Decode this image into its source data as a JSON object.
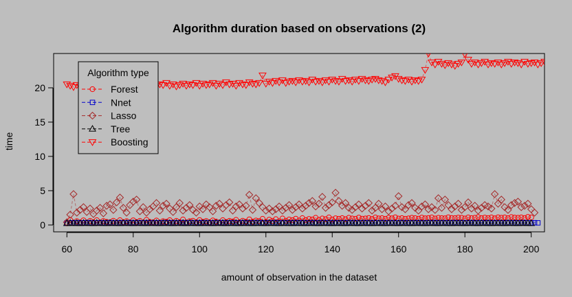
{
  "chart_data": {
    "type": "scatter",
    "title": "Algorithm duration based on observations (2)",
    "xlabel": "amount of observation in the dataset",
    "ylabel": "time",
    "xlim": [
      56,
      204
    ],
    "ylim": [
      -1,
      25
    ],
    "x_ticks": [
      60,
      80,
      100,
      120,
      140,
      160,
      180,
      200
    ],
    "y_ticks": [
      0,
      5,
      10,
      15,
      20
    ],
    "grid": false,
    "legend_title": "Algorithm type",
    "legend_position": "top-left",
    "x_start": 60,
    "x_step": 1,
    "series": [
      {
        "name": "Forest",
        "color": "#ff0000",
        "marker": "circle",
        "values": [
          0.25,
          0.72,
          0.28,
          0.55,
          0.35,
          0.68,
          0.3,
          0.6,
          0.4,
          0.7,
          0.32,
          0.58,
          0.45,
          0.38,
          0.62,
          0.3,
          0.7,
          0.4,
          0.55,
          0.35,
          0.68,
          0.42,
          0.6,
          0.3,
          0.75,
          0.45,
          0.38,
          0.65,
          0.33,
          0.55,
          0.48,
          0.7,
          0.36,
          0.6,
          0.42,
          0.8,
          0.35,
          0.55,
          0.62,
          0.4,
          0.72,
          0.45,
          0.58,
          0.38,
          0.66,
          0.5,
          0.35,
          0.7,
          0.44,
          0.6,
          0.52,
          0.75,
          0.4,
          0.62,
          0.48,
          0.82,
          0.5,
          0.65,
          0.58,
          0.9,
          0.45,
          0.78,
          0.6,
          0.85,
          0.55,
          0.95,
          0.62,
          0.8,
          0.7,
          0.92,
          0.65,
          1.0,
          0.72,
          0.88,
          0.8,
          1.05,
          0.75,
          0.95,
          0.85,
          1.1,
          0.8,
          0.98,
          0.9,
          1.0,
          0.85,
          1.05,
          0.95,
          0.9,
          1.08,
          0.92,
          0.95,
          1.02,
          0.88,
          1.1,
          0.96,
          1.0,
          0.9,
          1.05,
          0.98,
          1.12,
          0.94,
          1.0,
          0.9,
          0.96,
          1.05,
          1.0,
          0.92,
          1.08,
          0.98,
          1.02,
          1.1,
          0.95,
          1.05,
          1.0,
          0.98,
          1.12,
          1.02,
          1.0,
          1.08,
          1.05,
          0.95,
          1.1,
          1.0,
          1.05,
          1.15,
          1.0,
          1.08,
          1.02,
          1.1,
          0.98,
          1.12,
          1.05,
          1.1,
          1.0,
          1.15,
          1.08,
          1.05,
          1.1,
          1.02,
          1.18,
          1.1
        ]
      },
      {
        "name": "Nnet",
        "color": "#0000cc",
        "marker": "square",
        "values": [
          0.3,
          0.32,
          0.29,
          0.33,
          0.3,
          0.31,
          0.34,
          0.3,
          0.32,
          0.31,
          0.33,
          0.3,
          0.32,
          0.34,
          0.31,
          0.3,
          0.33,
          0.32,
          0.31,
          0.34,
          0.3,
          0.33,
          0.32,
          0.31,
          0.34,
          0.32,
          0.3,
          0.33,
          0.31,
          0.32,
          0.34,
          0.31,
          0.33,
          0.3,
          0.32,
          0.34,
          0.31,
          0.33,
          0.32,
          0.3,
          0.34,
          0.31,
          0.33,
          0.32,
          0.3,
          0.33,
          0.31,
          0.34,
          0.32,
          0.3,
          0.33,
          0.32,
          0.31,
          0.34,
          0.3,
          0.33,
          0.32,
          0.31,
          0.34,
          0.3,
          0.32,
          0.33,
          0.31,
          0.34,
          0.32,
          0.3,
          0.33,
          0.31,
          0.32,
          0.34,
          0.3,
          0.33,
          0.32,
          0.31,
          0.34,
          0.3,
          0.32,
          0.33,
          0.31,
          0.34,
          0.32,
          0.3,
          0.33,
          0.31,
          0.32,
          0.34,
          0.3,
          0.33,
          0.32,
          0.31,
          0.34,
          0.3,
          0.33,
          0.32,
          0.31,
          0.34,
          0.32,
          0.3,
          0.33,
          0.31,
          0.32,
          0.34,
          0.3,
          0.33,
          0.32,
          0.31,
          0.34,
          0.3,
          0.32,
          0.33,
          0.31,
          0.34,
          0.32,
          0.3,
          0.33,
          0.31,
          0.32,
          0.34,
          0.3,
          0.33,
          0.32,
          0.31,
          0.34,
          0.3,
          0.32,
          0.33,
          0.31,
          0.34,
          0.32,
          0.3,
          0.33,
          0.31,
          0.32,
          0.34,
          0.3,
          0.33,
          0.32,
          0.31,
          0.34,
          0.32,
          0.3,
          0.33,
          0.31
        ]
      },
      {
        "name": "Lasso",
        "color": "#a52a2a",
        "marker": "diamond",
        "values": [
          0.4,
          1.5,
          4.5,
          1.8,
          2.2,
          2.6,
          1.9,
          2.4,
          1.6,
          2.1,
          2.5,
          1.7,
          2.8,
          3.0,
          2.2,
          3.3,
          4.0,
          2.5,
          1.8,
          2.9,
          3.4,
          3.7,
          2.0,
          2.6,
          1.8,
          2.3,
          2.7,
          3.2,
          2.1,
          2.8,
          3.1,
          2.4,
          1.9,
          2.6,
          3.2,
          2.1,
          2.5,
          2.9,
          2.2,
          1.8,
          2.7,
          2.3,
          3.0,
          2.6,
          2.0,
          2.8,
          3.1,
          2.4,
          2.9,
          3.3,
          2.1,
          2.7,
          3.0,
          2.4,
          2.8,
          4.4,
          2.2,
          3.9,
          3.2,
          2.6,
          2.1,
          2.4,
          2.0,
          2.3,
          2.7,
          2.1,
          2.5,
          2.9,
          2.2,
          2.6,
          3.0,
          2.4,
          2.8,
          3.2,
          3.5,
          2.7,
          3.1,
          4.1,
          2.5,
          2.9,
          3.3,
          4.7,
          3.5,
          2.8,
          3.2,
          2.5,
          2.2,
          2.6,
          3.0,
          2.4,
          2.8,
          3.2,
          2.1,
          2.5,
          3.1,
          2.3,
          2.7,
          2.0,
          2.4,
          2.8,
          4.2,
          2.6,
          2.3,
          2.9,
          3.2,
          2.5,
          2.1,
          2.7,
          3.0,
          2.3,
          2.6,
          2.2,
          3.9,
          2.5,
          3.7,
          2.9,
          2.3,
          2.7,
          3.1,
          2.2,
          2.6,
          3.3,
          2.4,
          2.8,
          2.1,
          2.5,
          2.9,
          2.7,
          2.4,
          4.5,
          3.1,
          3.7,
          2.6,
          2.2,
          2.9,
          3.2,
          3.4,
          2.6,
          2.8,
          3.1,
          2.3,
          1.8
        ]
      },
      {
        "name": "Tree",
        "color": "#000000",
        "marker": "triangle-up",
        "values": [
          0.25,
          0.28,
          0.26,
          0.27,
          0.25,
          0.28,
          0.26,
          0.27,
          0.25,
          0.28,
          0.26,
          0.27,
          0.25,
          0.28,
          0.26,
          0.27,
          0.25,
          0.28,
          0.26,
          0.27,
          0.25,
          0.28,
          0.26,
          0.27,
          0.25,
          0.28,
          0.26,
          0.27,
          0.25,
          0.28,
          0.26,
          0.27,
          0.25,
          0.28,
          0.26,
          0.27,
          0.25,
          0.28,
          0.26,
          0.27,
          0.25,
          0.28,
          0.26,
          0.27,
          0.25,
          0.28,
          0.26,
          0.27,
          0.25,
          0.28,
          0.26,
          0.27,
          0.25,
          0.28,
          0.26,
          0.27,
          0.25,
          0.28,
          0.26,
          0.27,
          0.25,
          0.28,
          0.26,
          0.27,
          0.25,
          0.28,
          0.26,
          0.27,
          0.25,
          0.28,
          0.26,
          0.27,
          0.25,
          0.28,
          0.26,
          0.27,
          0.25,
          0.28,
          0.26,
          0.27,
          0.25,
          0.28,
          0.26,
          0.27,
          0.25,
          0.28,
          0.26,
          0.27,
          0.25,
          0.28,
          0.26,
          0.27,
          0.25,
          0.28,
          0.26,
          0.27,
          0.25,
          0.28,
          0.26,
          0.27,
          0.25,
          0.28,
          0.26,
          0.27,
          0.25,
          0.28,
          0.26,
          0.27,
          0.25,
          0.28,
          0.26,
          0.27,
          0.25,
          0.28,
          0.26,
          0.27,
          0.25,
          0.28,
          0.26,
          0.27,
          0.25,
          0.28,
          0.26,
          0.27,
          0.25,
          0.28,
          0.26,
          0.27,
          0.25,
          0.28,
          0.26,
          0.27,
          0.25,
          0.28,
          0.26,
          0.27,
          0.25,
          0.28,
          0.26,
          0.27,
          0.25
        ]
      },
      {
        "name": "Boosting",
        "color": "#ff0000",
        "marker": "triangle-down",
        "values": [
          20.5,
          20.3,
          20.1,
          20.4,
          20.2,
          20.6,
          20.3,
          20.5,
          20.1,
          20.4,
          20.2,
          20.5,
          20.3,
          20.6,
          20.2,
          20.4,
          20.1,
          20.5,
          20.3,
          20.2,
          20.6,
          20.4,
          20.3,
          20.5,
          20.2,
          20.4,
          20.6,
          20.3,
          20.5,
          20.4,
          20.7,
          20.3,
          20.5,
          20.2,
          20.4,
          20.6,
          20.3,
          20.5,
          20.4,
          20.7,
          20.3,
          20.6,
          20.4,
          20.5,
          20.7,
          20.3,
          20.6,
          20.4,
          20.8,
          20.5,
          20.6,
          20.3,
          20.7,
          20.5,
          20.4,
          20.8,
          20.6,
          20.5,
          20.7,
          21.8,
          20.6,
          20.9,
          20.7,
          21.0,
          20.8,
          21.1,
          20.7,
          20.9,
          21.0,
          20.8,
          21.1,
          20.9,
          21.0,
          20.8,
          21.2,
          20.9,
          21.0,
          20.8,
          21.1,
          20.9,
          21.2,
          21.0,
          20.9,
          21.3,
          21.0,
          21.1,
          20.9,
          21.2,
          21.0,
          21.3,
          21.1,
          21.0,
          21.2,
          21.3,
          21.1,
          21.0,
          20.8,
          21.2,
          21.5,
          21.7,
          21.3,
          21.1,
          21.0,
          21.2,
          20.9,
          21.1,
          21.0,
          21.2,
          22.6,
          25.0,
          23.7,
          23.4,
          23.8,
          23.5,
          23.3,
          23.6,
          23.4,
          23.2,
          23.5,
          23.7,
          24.9,
          24.1,
          23.5,
          23.7,
          23.4,
          23.6,
          23.8,
          23.4,
          23.6,
          23.5,
          23.7,
          23.4,
          23.6,
          23.8,
          23.5,
          23.7,
          23.6,
          23.4,
          23.8,
          23.5,
          23.6,
          23.7,
          23.4,
          23.6,
          23.8
        ]
      }
    ]
  }
}
